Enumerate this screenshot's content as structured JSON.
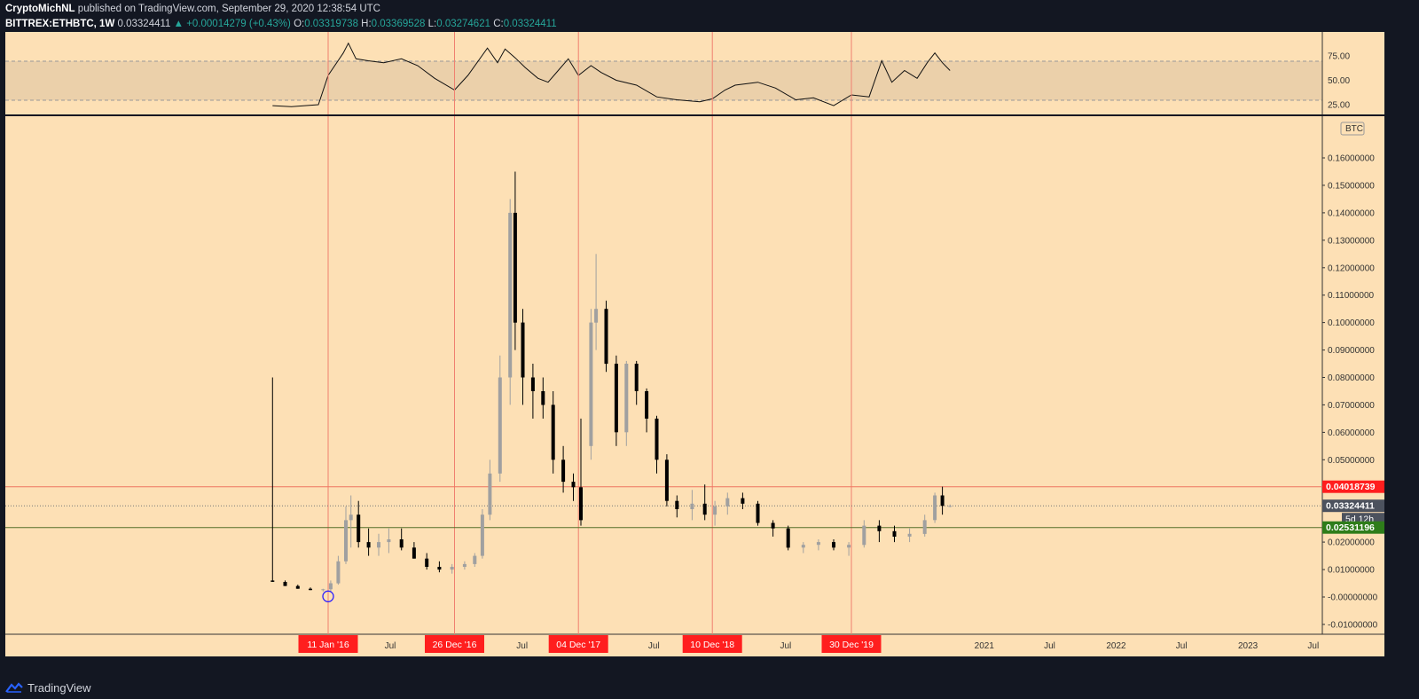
{
  "header": {
    "author": "CryptoMichNL",
    "published_text": "published on TradingView.com, September 29, 2020 12:38:54 UTC",
    "symbol": "BITTREX:ETHBTC, 1W",
    "last": "0.03324411",
    "change": "▲ +0.00014279 (+0.43%)",
    "o_label": "O:",
    "o_value": "0.03319738",
    "h_label": "H:",
    "h_value": "0.03369528",
    "l_label": "L:",
    "l_value": "0.03274621",
    "c_label": "C:",
    "c_value": "0.03324411"
  },
  "footer": {
    "brand": "TradingView"
  },
  "colors": {
    "chart_bg": "#fde0b5",
    "rsi_band": "#ebd0aa",
    "vline": "#f08070",
    "hline_red": "#ef7560",
    "hline_green": "#566f2a",
    "badge_red": "#ff1e1e",
    "badge_gray": "#4c525e",
    "badge_green": "#2e7d1a",
    "up_candle": "#a0a0a0",
    "down_candle": "#000000",
    "marker": "#2a1eff"
  },
  "chart_data": [
    {
      "type": "line",
      "title": "RSI",
      "ylim": [
        15,
        95
      ],
      "y_ticks": [
        "75.00",
        "50.00",
        "25.00"
      ],
      "band": [
        30,
        70
      ],
      "x": [
        "2015-08-10",
        "2015-10-01",
        "2015-12-15",
        "2016-01-11",
        "2016-02-22",
        "2016-03-07",
        "2016-03-28",
        "2016-05-01",
        "2016-06-13",
        "2016-08-01",
        "2016-09-15",
        "2016-11-01",
        "2016-12-26",
        "2017-02-01",
        "2017-03-27",
        "2017-04-24",
        "2017-05-15",
        "2017-06-12",
        "2017-07-10",
        "2017-08-14",
        "2017-09-11",
        "2017-10-09",
        "2017-11-06",
        "2017-12-04",
        "2018-01-08",
        "2018-02-05",
        "2018-03-19",
        "2018-05-14",
        "2018-07-09",
        "2018-09-03",
        "2018-11-05",
        "2018-12-10",
        "2019-01-14",
        "2019-02-11",
        "2019-04-15",
        "2019-06-03",
        "2019-07-29",
        "2019-09-16",
        "2019-11-11",
        "2019-12-30",
        "2020-02-17",
        "2020-03-23",
        "2020-04-20",
        "2020-05-25",
        "2020-06-29",
        "2020-07-27",
        "2020-08-17",
        "2020-09-07",
        "2020-09-28"
      ],
      "values": [
        24,
        23,
        25,
        55,
        78,
        88,
        72,
        70,
        68,
        72,
        65,
        52,
        40,
        55,
        83,
        68,
        82,
        73,
        63,
        52,
        48,
        60,
        72,
        55,
        65,
        58,
        50,
        45,
        33,
        30,
        28,
        31,
        40,
        45,
        48,
        42,
        30,
        32,
        24,
        35,
        33,
        70,
        48,
        60,
        52,
        68,
        78,
        68,
        60
      ]
    },
    {
      "type": "candlestick",
      "title": "BITTREX:ETHBTC, 1W",
      "unit_label": "BTC",
      "ylim": [
        -0.015,
        0.175
      ],
      "y_ticks": [
        "0.16000000",
        "0.15000000",
        "0.14000000",
        "0.13000000",
        "0.12000000",
        "0.11000000",
        "0.10000000",
        "0.09000000",
        "0.08000000",
        "0.07000000",
        "0.06000000",
        "0.05000000",
        "0.02000000",
        "0.01000000",
        "-0.00000000",
        "-0.01000000"
      ],
      "x_ticks": [
        "Jul",
        "Jul",
        "Jul",
        "Jul",
        "2021",
        "Jul",
        "2022",
        "Jul",
        "2023",
        "Jul"
      ],
      "date_markers": [
        "11 Jan '16",
        "26 Dec '16",
        "04 Dec '17",
        "10 Dec '18",
        "30 Dec '19"
      ],
      "marker_dates": [
        "2016-01-11",
        "2016-12-26",
        "2017-12-04",
        "2018-12-10",
        "2019-12-30"
      ],
      "levels": {
        "resistance": "0.04018739",
        "last_price": "0.03324411",
        "countdown": "5d 12h",
        "support": "0.02531196"
      },
      "x": [
        "2015-08-10",
        "2015-09-14",
        "2015-10-19",
        "2015-11-23",
        "2015-12-28",
        "2016-01-18",
        "2016-02-08",
        "2016-02-29",
        "2016-03-14",
        "2016-04-04",
        "2016-05-02",
        "2016-05-30",
        "2016-06-27",
        "2016-08-01",
        "2016-09-05",
        "2016-10-10",
        "2016-11-14",
        "2016-12-19",
        "2017-01-23",
        "2017-02-20",
        "2017-03-13",
        "2017-04-03",
        "2017-05-01",
        "2017-05-29",
        "2017-06-12",
        "2017-07-03",
        "2017-07-31",
        "2017-08-28",
        "2017-09-25",
        "2017-10-23",
        "2017-11-20",
        "2017-12-11",
        "2018-01-08",
        "2018-01-22",
        "2018-02-19",
        "2018-03-19",
        "2018-04-16",
        "2018-05-14",
        "2018-06-11",
        "2018-07-09",
        "2018-08-06",
        "2018-09-03",
        "2018-10-15",
        "2018-11-19",
        "2018-12-17",
        "2019-01-21",
        "2019-03-04",
        "2019-04-15",
        "2019-05-27",
        "2019-07-08",
        "2019-08-19",
        "2019-09-30",
        "2019-11-11",
        "2019-12-23",
        "2020-02-03",
        "2020-03-16",
        "2020-04-27",
        "2020-06-08",
        "2020-07-20",
        "2020-08-17",
        "2020-09-07",
        "2020-09-28"
      ],
      "open": [
        0.006,
        0.0055,
        0.004,
        0.003,
        0.0025,
        0.0028,
        0.005,
        0.013,
        0.028,
        0.03,
        0.02,
        0.018,
        0.02,
        0.021,
        0.018,
        0.014,
        0.011,
        0.01,
        0.011,
        0.012,
        0.015,
        0.03,
        0.045,
        0.08,
        0.14,
        0.1,
        0.08,
        0.075,
        0.07,
        0.05,
        0.042,
        0.04,
        0.055,
        0.1,
        0.105,
        0.085,
        0.06,
        0.085,
        0.075,
        0.065,
        0.05,
        0.035,
        0.032,
        0.034,
        0.03,
        0.033,
        0.036,
        0.034,
        0.027,
        0.025,
        0.018,
        0.019,
        0.02,
        0.018,
        0.019,
        0.026,
        0.024,
        0.022,
        0.023,
        0.028,
        0.037,
        0.0332
      ],
      "high": [
        0.08,
        0.006,
        0.0045,
        0.0035,
        0.003,
        0.006,
        0.015,
        0.033,
        0.037,
        0.035,
        0.025,
        0.023,
        0.025,
        0.025,
        0.02,
        0.016,
        0.013,
        0.012,
        0.013,
        0.016,
        0.032,
        0.05,
        0.088,
        0.145,
        0.155,
        0.105,
        0.085,
        0.08,
        0.075,
        0.055,
        0.045,
        0.065,
        0.105,
        0.125,
        0.108,
        0.088,
        0.086,
        0.086,
        0.076,
        0.066,
        0.052,
        0.037,
        0.039,
        0.041,
        0.035,
        0.038,
        0.038,
        0.035,
        0.028,
        0.026,
        0.02,
        0.021,
        0.021,
        0.02,
        0.028,
        0.028,
        0.026,
        0.025,
        0.03,
        0.038,
        0.0402,
        0.0337
      ],
      "low": [
        0.0055,
        0.004,
        0.003,
        0.0025,
        0.002,
        0.002,
        0.0045,
        0.012,
        0.018,
        0.018,
        0.015,
        0.015,
        0.016,
        0.017,
        0.014,
        0.01,
        0.009,
        0.0085,
        0.01,
        0.011,
        0.014,
        0.028,
        0.042,
        0.07,
        0.09,
        0.07,
        0.065,
        0.065,
        0.045,
        0.038,
        0.035,
        0.026,
        0.05,
        0.09,
        0.082,
        0.055,
        0.055,
        0.07,
        0.06,
        0.045,
        0.033,
        0.029,
        0.028,
        0.028,
        0.026,
        0.03,
        0.032,
        0.026,
        0.022,
        0.017,
        0.016,
        0.017,
        0.017,
        0.015,
        0.018,
        0.02,
        0.02,
        0.02,
        0.022,
        0.027,
        0.03,
        0.0327
      ],
      "close": [
        0.0055,
        0.004,
        0.003,
        0.0025,
        0.0028,
        0.005,
        0.013,
        0.028,
        0.03,
        0.02,
        0.018,
        0.02,
        0.021,
        0.018,
        0.014,
        0.011,
        0.01,
        0.011,
        0.012,
        0.015,
        0.03,
        0.045,
        0.08,
        0.14,
        0.1,
        0.08,
        0.075,
        0.07,
        0.05,
        0.042,
        0.04,
        0.028,
        0.1,
        0.105,
        0.085,
        0.06,
        0.085,
        0.075,
        0.065,
        0.05,
        0.035,
        0.032,
        0.034,
        0.03,
        0.033,
        0.036,
        0.034,
        0.027,
        0.025,
        0.018,
        0.019,
        0.02,
        0.018,
        0.019,
        0.026,
        0.024,
        0.022,
        0.023,
        0.028,
        0.037,
        0.0332,
        0.0332
      ]
    }
  ]
}
